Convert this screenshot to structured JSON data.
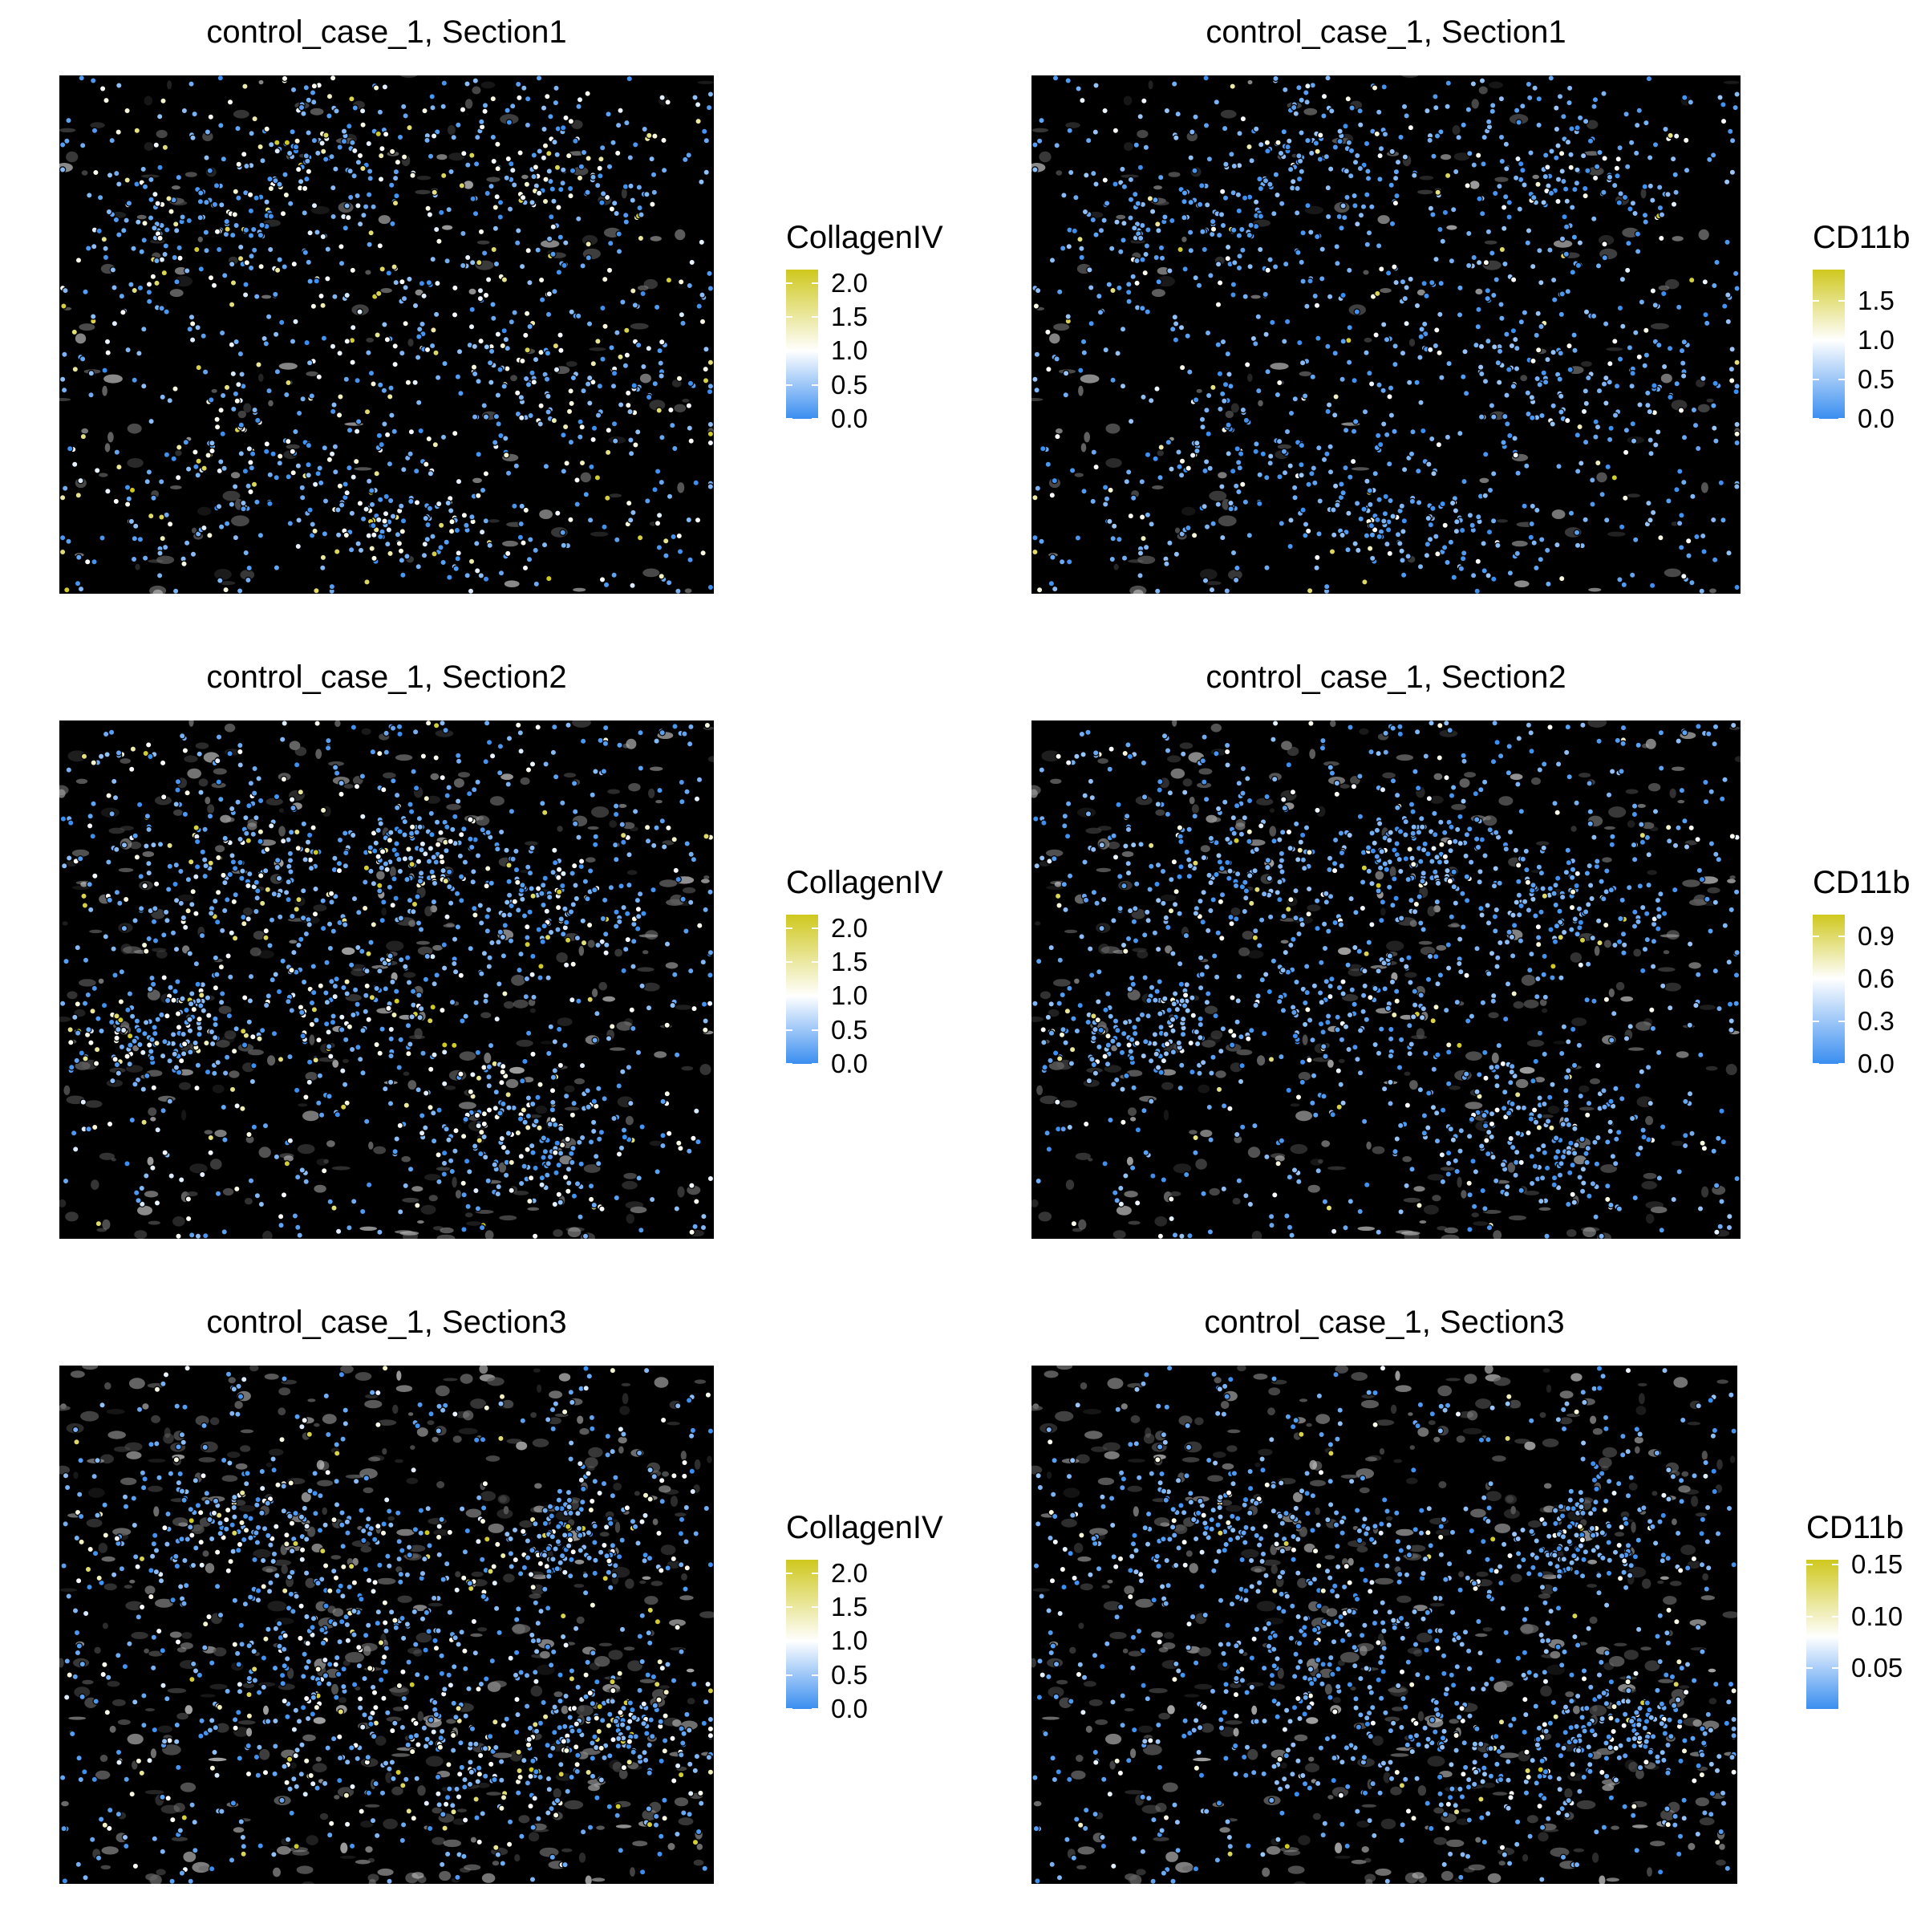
{
  "chart_data": [
    {
      "type": "scatter",
      "title": "control_case_1, Section1",
      "legend": {
        "title": "CollagenIV",
        "ticks": [
          "0.0",
          "0.5",
          "1.0",
          "1.5",
          "2.0"
        ],
        "tick_values": [
          0,
          0.5,
          1.0,
          1.5,
          2.0
        ],
        "range": [
          0,
          2.2
        ],
        "midpoint": 1.0,
        "position": "right"
      },
      "colors": {
        "low": "#3a8ef0",
        "mid": "#ffffff",
        "high": "#cfc81e",
        "background": "#000000"
      },
      "seed": 101,
      "points": 1350,
      "value_profile": "high",
      "cluster_style": "section1"
    },
    {
      "type": "scatter",
      "title": "control_case_1, Section1",
      "legend": {
        "title": "CD11b",
        "ticks": [
          "0.0",
          "0.5",
          "1.0",
          "1.5"
        ],
        "tick_values": [
          0,
          0.5,
          1.0,
          1.5
        ],
        "range": [
          0,
          1.9
        ],
        "midpoint": 1.0,
        "position": "right"
      },
      "colors": {
        "low": "#3a8ef0",
        "mid": "#ffffff",
        "high": "#cfc81e",
        "background": "#000000"
      },
      "seed": 101,
      "points": 1350,
      "value_profile": "low",
      "cluster_style": "section1"
    },
    {
      "type": "scatter",
      "title": "control_case_1, Section2",
      "legend": {
        "title": "CollagenIV",
        "ticks": [
          "0.0",
          "0.5",
          "1.0",
          "1.5",
          "2.0"
        ],
        "tick_values": [
          0,
          0.5,
          1.0,
          1.5,
          2.0
        ],
        "range": [
          0,
          2.2
        ],
        "midpoint": 1.0,
        "position": "right"
      },
      "colors": {
        "low": "#3a8ef0",
        "mid": "#ffffff",
        "high": "#cfc81e",
        "background": "#000000"
      },
      "seed": 202,
      "points": 1500,
      "value_profile": "mid",
      "cluster_style": "section2"
    },
    {
      "type": "scatter",
      "title": "control_case_1, Section2",
      "legend": {
        "title": "CD11b",
        "ticks": [
          "0.0",
          "0.3",
          "0.6",
          "0.9"
        ],
        "tick_values": [
          0,
          0.3,
          0.6,
          0.9
        ],
        "range": [
          0,
          1.05
        ],
        "midpoint": 0.6,
        "position": "right"
      },
      "colors": {
        "low": "#3a8ef0",
        "mid": "#ffffff",
        "high": "#cfc81e",
        "background": "#000000"
      },
      "seed": 202,
      "points": 1500,
      "value_profile": "low",
      "cluster_style": "section2"
    },
    {
      "type": "scatter",
      "title": "control_case_1, Section3",
      "legend": {
        "title": "CollagenIV",
        "ticks": [
          "0.0",
          "0.5",
          "1.0",
          "1.5",
          "2.0"
        ],
        "tick_values": [
          0,
          0.5,
          1.0,
          1.5,
          2.0
        ],
        "range": [
          0,
          2.2
        ],
        "midpoint": 1.0,
        "position": "right"
      },
      "colors": {
        "low": "#3a8ef0",
        "mid": "#ffffff",
        "high": "#cfc81e",
        "background": "#000000"
      },
      "seed": 303,
      "points": 1400,
      "value_profile": "mid",
      "cluster_style": "section3"
    },
    {
      "type": "scatter",
      "title": "control_case_1, Section3",
      "legend": {
        "title": "CD11b",
        "ticks": [
          "0.05",
          "0.10",
          "0.15"
        ],
        "tick_values": [
          0.05,
          0.1,
          0.15
        ],
        "range": [
          0.01,
          0.155
        ],
        "midpoint": 0.08,
        "position": "right"
      },
      "colors": {
        "low": "#3a8ef0",
        "mid": "#ffffff",
        "high": "#cfc81e",
        "background": "#000000"
      },
      "seed": 303,
      "points": 1400,
      "value_profile": "low",
      "cluster_style": "section3"
    }
  ]
}
